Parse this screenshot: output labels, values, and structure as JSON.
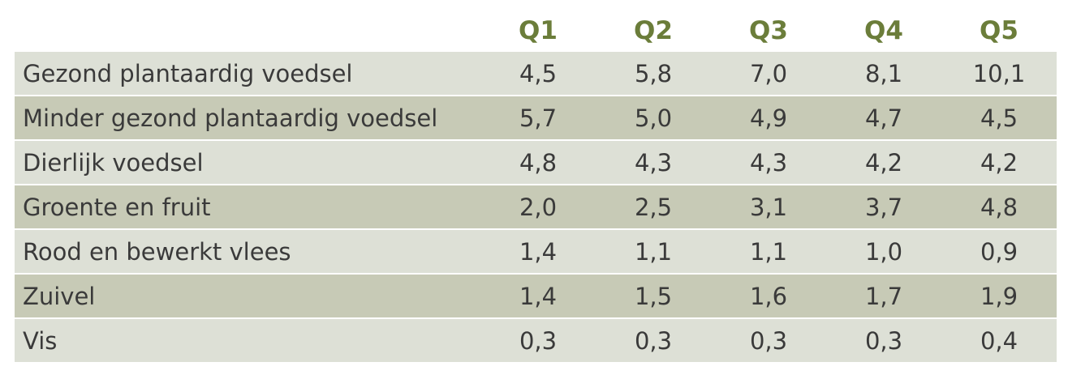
{
  "chart_data": {
    "type": "table",
    "columns": [
      "",
      "Q1",
      "Q2",
      "Q3",
      "Q4",
      "Q5"
    ],
    "rows": [
      {
        "label": "Gezond plantaardig voedsel",
        "values": [
          "4,5",
          "5,8",
          "7,0",
          "8,1",
          "10,1"
        ]
      },
      {
        "label": "Minder gezond plantaardig voedsel",
        "values": [
          "5,7",
          "5,0",
          "4,9",
          "4,7",
          "4,5"
        ]
      },
      {
        "label": "Dierlijk voedsel",
        "values": [
          "4,8",
          "4,3",
          "4,3",
          "4,2",
          "4,2"
        ]
      },
      {
        "label": "Groente en fruit",
        "values": [
          "2,0",
          "2,5",
          "3,1",
          "3,7",
          "4,8"
        ]
      },
      {
        "label": "Rood en bewerkt vlees",
        "values": [
          "1,4",
          "1,1",
          "1,1",
          "1,0",
          "0,9"
        ]
      },
      {
        "label": "Zuivel",
        "values": [
          "1,4",
          "1,5",
          "1,6",
          "1,7",
          "1,9"
        ]
      },
      {
        "label": "Vis",
        "values": [
          "0,3",
          "0,3",
          "0,3",
          "0,3",
          "0,4"
        ]
      }
    ],
    "colors": {
      "header_text": "#6b7d3a",
      "row_light": "#dde0d6",
      "row_dark": "#c7cab6",
      "cell_text": "#3a3a3a"
    }
  }
}
